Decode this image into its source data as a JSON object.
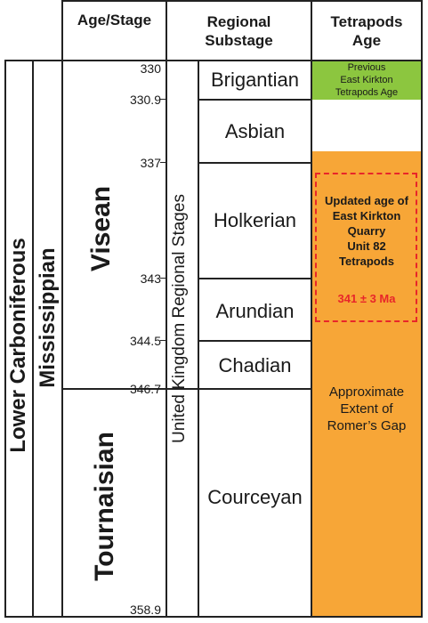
{
  "headers": {
    "age_stage": "Age/Stage",
    "regional_substage": "Regional\nSubstage",
    "tetrapods_age": "Tetrapods\nAge"
  },
  "eras": {
    "lower_carboniferous": "Lower Carboniferous",
    "mississippian": "Mississippian",
    "visean": "Visean",
    "tournaisian": "Tournaisian",
    "uk_regional": "United Kingdom Regional Stages"
  },
  "ages": [
    "330",
    "330.9",
    "337",
    "343",
    "344.5",
    "346.7",
    "358.9"
  ],
  "substages": [
    "Brigantian",
    "Asbian",
    "Holkerian",
    "Arundian",
    "Chadian",
    "Courceyan"
  ],
  "tetrapods": {
    "previous": "Previous\nEast Kirkton\nTetrapods Age",
    "updated": "Updated age of\nEast Kirkton\nQuarry\nUnit 82\nTetrapods",
    "updated_value": "341 ± 3 Ma",
    "gap": "Approximate\nExtent of\nRomer’s Gap"
  },
  "colors": {
    "previous_fill": "#8cc63f",
    "gap_fill": "#f7a637",
    "updated_red": "#e8262a"
  }
}
